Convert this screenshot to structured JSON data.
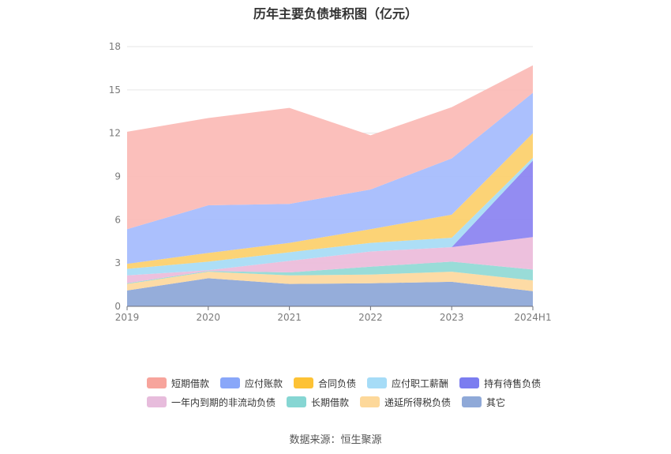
{
  "title": "历年主要负债堆积图（亿元）",
  "source": "数据来源：恒生聚源",
  "chart_data": {
    "type": "area",
    "stacked": true,
    "categories": [
      "2019",
      "2020",
      "2021",
      "2022",
      "2023",
      "2024H1"
    ],
    "ylim": [
      0,
      18
    ],
    "yticks": [
      0,
      3,
      6,
      9,
      12,
      15,
      18
    ],
    "grid": true,
    "legend_position": "bottom",
    "series": [
      {
        "name": "其它",
        "color": "#8fa9d8",
        "values": [
          1.1,
          1.95,
          1.55,
          1.6,
          1.7,
          1.05
        ]
      },
      {
        "name": "递延所得税负债",
        "color": "#fdd9a0",
        "values": [
          0.45,
          0.45,
          0.6,
          0.6,
          0.7,
          0.75
        ]
      },
      {
        "name": "长期借款",
        "color": "#93dad6",
        "values": [
          0.05,
          0.05,
          0.2,
          0.55,
          0.7,
          0.75
        ]
      },
      {
        "name": "一年内到期的非流动负债",
        "color": "#ecbddb",
        "values": [
          0.55,
          0.05,
          0.8,
          1.05,
          1.0,
          2.25
        ]
      },
      {
        "name": "持有待售负债",
        "color": "#8d86f1",
        "values": [
          0,
          0,
          0,
          0,
          0,
          5.3
        ]
      },
      {
        "name": "应付职工薪酬",
        "color": "#a9dcf6",
        "values": [
          0.45,
          0.6,
          0.6,
          0.6,
          0.65,
          0.2
        ]
      },
      {
        "name": "合同负债",
        "color": "#fcd16f",
        "values": [
          0.35,
          0.6,
          0.65,
          0.95,
          1.6,
          1.7
        ]
      },
      {
        "name": "应付账款",
        "color": "#a6bdfd",
        "values": [
          2.4,
          3.3,
          2.7,
          2.75,
          3.9,
          2.8
        ]
      },
      {
        "name": "短期借款",
        "color": "#fbbcb7",
        "values": [
          6.75,
          6.05,
          6.65,
          3.75,
          3.55,
          1.9
        ]
      }
    ]
  },
  "legend": {
    "row1": [
      {
        "name": "短期借款",
        "color": "#f7a49c"
      },
      {
        "name": "应付账款",
        "color": "#89a7f9"
      },
      {
        "name": "合同负债",
        "color": "#fdc235"
      },
      {
        "name": "应付职工薪酬",
        "color": "#a6dcf7"
      },
      {
        "name": "持有待售负债",
        "color": "#7b7df0"
      }
    ],
    "row2": [
      {
        "name": "一年内到期的非流动负债",
        "color": "#e7bcdc"
      },
      {
        "name": "长期借款",
        "color": "#86d6d3"
      },
      {
        "name": "递延所得税负债",
        "color": "#fdd89a"
      },
      {
        "name": "其它",
        "color": "#8fa9d8"
      }
    ]
  }
}
